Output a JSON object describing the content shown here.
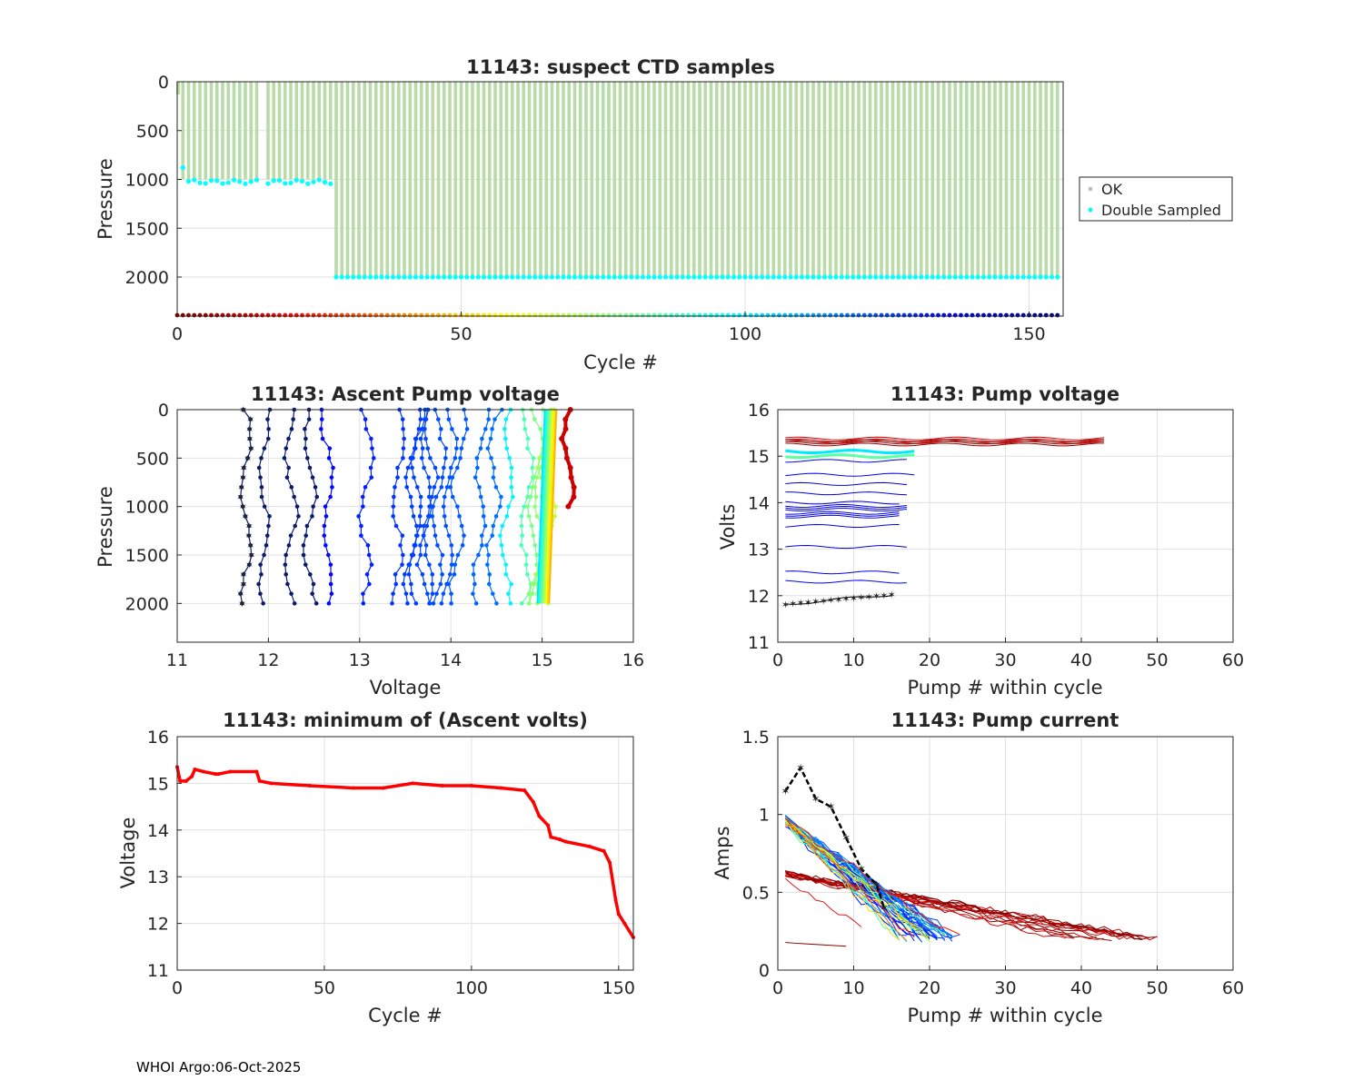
{
  "footer": "WHOI Argo:06-Oct-2025",
  "colors": {
    "ok": "#b9dba7",
    "double_sampled": "#00ffff",
    "highlight": "#ffff00",
    "min_line": "#ff0000",
    "grid": "#e0e0e0"
  },
  "chart_data": [
    {
      "id": "suspect",
      "type": "scatter",
      "title": "11143: suspect CTD samples",
      "xlabel": "Cycle #",
      "ylabel": "Pressure",
      "xlim": [
        0,
        156
      ],
      "ylim": [
        2400,
        0
      ],
      "xticks": [
        0,
        50,
        100,
        150
      ],
      "yticks": [
        0,
        500,
        1000,
        1500,
        2000
      ],
      "legend": {
        "position": "right-outside",
        "entries": [
          "OK",
          "Double Sampled"
        ]
      },
      "ok_profile": {
        "cycles": [
          1,
          155
        ],
        "missing_cycles": [
          15
        ],
        "top": 0,
        "bottom_by_cycle": [
          [
            1,
            1000
          ],
          [
            27,
            1000
          ],
          [
            28,
            2000
          ],
          [
            155,
            2000
          ]
        ]
      },
      "double_sampled": {
        "cycles": [
          1,
          155
        ],
        "depth_by_cycle": [
          [
            1,
            880
          ],
          [
            2,
            1030
          ],
          [
            27,
            1010
          ],
          [
            28,
            2000
          ],
          [
            155,
            2000
          ]
        ]
      },
      "cycle_marker_row": {
        "pressure": 2400,
        "cycles": [
          0,
          155
        ]
      }
    },
    {
      "id": "ascent",
      "type": "line",
      "title": "11143: Ascent Pump voltage",
      "xlabel": "Voltage",
      "ylabel": "Pressure",
      "xlim": [
        11,
        16
      ],
      "ylim": [
        2400,
        0
      ],
      "xticks": [
        11,
        12,
        13,
        14,
        15,
        16
      ],
      "yticks": [
        0,
        500,
        1000,
        1500,
        2000
      ],
      "profile_voltages": [
        11.75,
        11.95,
        12.25,
        12.45,
        12.65,
        13.1,
        13.45,
        13.6,
        13.65,
        13.75,
        13.8,
        13.9,
        14.0,
        14.1,
        14.35,
        14.5,
        14.65,
        14.85,
        14.95,
        15.0,
        15.05,
        15.1,
        15.3
      ],
      "max_pressure": 2000
    },
    {
      "id": "pumpv",
      "type": "line",
      "title": "11143: Pump voltage",
      "xlabel": "Pump # within cycle",
      "ylabel": "Volts",
      "xlim": [
        0,
        60
      ],
      "ylim": [
        11,
        16
      ],
      "xticks": [
        0,
        10,
        20,
        30,
        40,
        50,
        60
      ],
      "yticks": [
        11,
        12,
        13,
        14,
        15,
        16
      ],
      "series_levels": [
        15.3,
        15.25,
        15.1,
        15.0,
        14.9,
        14.6,
        14.4,
        14.2,
        14.0,
        13.85,
        13.7,
        13.5,
        13.05,
        12.5,
        12.3,
        11.8
      ]
    },
    {
      "id": "minv",
      "type": "line",
      "title": "11143: minimum of (Ascent volts)",
      "xlabel": "Cycle #",
      "ylabel": "Voltage",
      "xlim": [
        0,
        155
      ],
      "ylim": [
        11,
        16
      ],
      "xticks": [
        0,
        50,
        100,
        150
      ],
      "yticks": [
        11,
        12,
        13,
        14,
        15,
        16
      ],
      "x": [
        0,
        1,
        3,
        5,
        6,
        9,
        13,
        14,
        18,
        27,
        28,
        32,
        45,
        60,
        70,
        80,
        90,
        100,
        110,
        118,
        121,
        123,
        126,
        127,
        130,
        132,
        140,
        145,
        147,
        149,
        150,
        152,
        155
      ],
      "values": [
        15.35,
        15.05,
        15.05,
        15.15,
        15.3,
        15.25,
        15.2,
        15.2,
        15.25,
        15.25,
        15.05,
        15.0,
        14.95,
        14.9,
        14.9,
        15.0,
        14.95,
        14.95,
        14.9,
        14.85,
        14.6,
        14.3,
        14.1,
        13.85,
        13.8,
        13.75,
        13.65,
        13.55,
        13.3,
        12.5,
        12.2,
        12.0,
        11.7
      ]
    },
    {
      "id": "current",
      "type": "line",
      "title": "11143: Pump current",
      "xlabel": "Pump # within cycle",
      "ylabel": "Amps",
      "xlim": [
        0,
        60
      ],
      "ylim": [
        0,
        1.5
      ],
      "xticks": [
        0,
        10,
        20,
        30,
        40,
        50,
        60
      ],
      "yticks": [
        0,
        0.5,
        1,
        1.5
      ],
      "ytick_labels": [
        "0",
        "0.5",
        "1",
        "1.5"
      ],
      "blue_group": {
        "start": 1.0,
        "end": 0.2,
        "len_range": [
          16,
          24
        ]
      },
      "red_group": {
        "start": 0.63,
        "end": 0.2,
        "len_range": [
          38,
          53
        ]
      },
      "highlight": {
        "x": [
          1,
          3,
          5,
          7,
          9,
          11,
          13,
          14
        ],
        "values": [
          1.15,
          1.3,
          1.1,
          1.05,
          0.85,
          0.65,
          0.55,
          0.4
        ]
      }
    }
  ]
}
